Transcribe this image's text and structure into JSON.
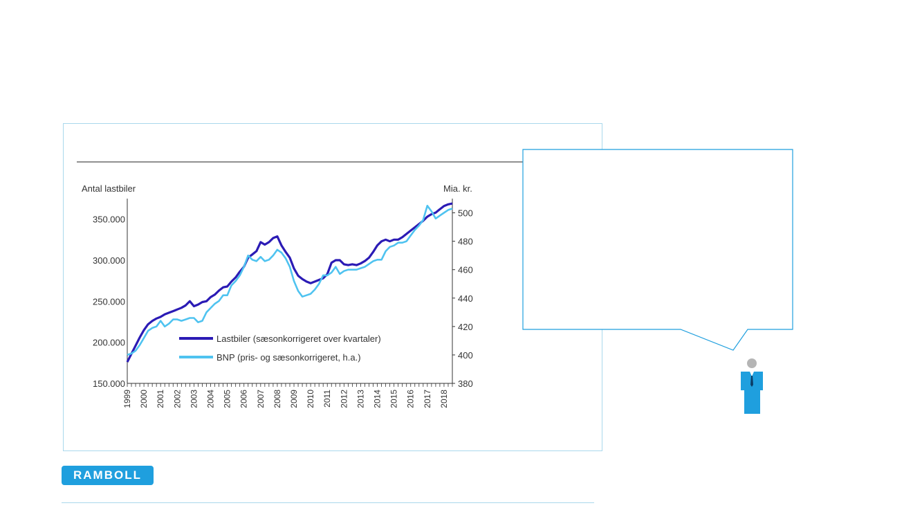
{
  "chart_data": {
    "type": "line",
    "left_axis": {
      "label": "Antal lastbiler",
      "min": 150000,
      "max": 375000,
      "ticks": [
        "150.000",
        "200.000",
        "250.000",
        "300.000",
        "350.000"
      ]
    },
    "right_axis": {
      "label": "Mia. kr.",
      "min": 380,
      "max": 510,
      "ticks": [
        "380",
        "400",
        "420",
        "440",
        "460",
        "480",
        "500"
      ]
    },
    "x_range": [
      1999,
      2018.5
    ],
    "x_ticks": [
      "1999",
      "2000",
      "2001",
      "2002",
      "2003",
      "2004",
      "2005",
      "2006",
      "2007",
      "2008",
      "2009",
      "2010",
      "2011",
      "2012",
      "2013",
      "2014",
      "2015",
      "2016",
      "2017",
      "2018"
    ],
    "grid": false,
    "legend_position": "bottom-center",
    "series": [
      {
        "name": "Lastbiler (sæsonkorrigeret over kvartaler)",
        "axis": "left",
        "color": "#2b1bb5",
        "points": [
          [
            1999.0,
            176000
          ],
          [
            1999.25,
            186000
          ],
          [
            1999.5,
            196000
          ],
          [
            1999.75,
            206000
          ],
          [
            2000.0,
            215000
          ],
          [
            2000.25,
            222000
          ],
          [
            2000.5,
            226000
          ],
          [
            2000.75,
            229000
          ],
          [
            2001.0,
            231000
          ],
          [
            2001.25,
            234000
          ],
          [
            2001.5,
            236000
          ],
          [
            2001.75,
            238000
          ],
          [
            2002.0,
            240000
          ],
          [
            2002.25,
            242000
          ],
          [
            2002.5,
            245000
          ],
          [
            2002.75,
            250000
          ],
          [
            2003.0,
            244000
          ],
          [
            2003.25,
            246000
          ],
          [
            2003.5,
            249000
          ],
          [
            2003.75,
            250000
          ],
          [
            2004.0,
            255000
          ],
          [
            2004.25,
            258000
          ],
          [
            2004.5,
            263000
          ],
          [
            2004.75,
            267000
          ],
          [
            2005.0,
            268000
          ],
          [
            2005.25,
            274000
          ],
          [
            2005.5,
            279000
          ],
          [
            2005.75,
            286000
          ],
          [
            2006.0,
            292000
          ],
          [
            2006.25,
            303000
          ],
          [
            2006.5,
            307000
          ],
          [
            2006.75,
            311000
          ],
          [
            2007.0,
            322000
          ],
          [
            2007.25,
            319000
          ],
          [
            2007.5,
            322000
          ],
          [
            2007.75,
            327000
          ],
          [
            2008.0,
            329000
          ],
          [
            2008.25,
            318000
          ],
          [
            2008.5,
            310000
          ],
          [
            2008.75,
            303000
          ],
          [
            2009.0,
            290000
          ],
          [
            2009.25,
            281000
          ],
          [
            2009.5,
            277000
          ],
          [
            2009.75,
            274000
          ],
          [
            2010.0,
            272000
          ],
          [
            2010.25,
            274000
          ],
          [
            2010.5,
            276000
          ],
          [
            2010.75,
            278000
          ],
          [
            2011.0,
            283000
          ],
          [
            2011.25,
            297000
          ],
          [
            2011.5,
            300000
          ],
          [
            2011.75,
            300000
          ],
          [
            2012.0,
            295000
          ],
          [
            2012.25,
            294000
          ],
          [
            2012.5,
            295000
          ],
          [
            2012.75,
            294000
          ],
          [
            2013.0,
            296000
          ],
          [
            2013.25,
            299000
          ],
          [
            2013.5,
            303000
          ],
          [
            2013.75,
            310000
          ],
          [
            2014.0,
            318000
          ],
          [
            2014.25,
            323000
          ],
          [
            2014.5,
            325000
          ],
          [
            2014.75,
            323000
          ],
          [
            2015.0,
            325000
          ],
          [
            2015.25,
            325000
          ],
          [
            2015.5,
            328000
          ],
          [
            2015.75,
            332000
          ],
          [
            2016.0,
            336000
          ],
          [
            2016.25,
            340000
          ],
          [
            2016.5,
            344000
          ],
          [
            2016.75,
            348000
          ],
          [
            2017.0,
            353000
          ],
          [
            2017.25,
            356000
          ],
          [
            2017.5,
            358000
          ],
          [
            2017.75,
            362000
          ],
          [
            2018.0,
            366000
          ],
          [
            2018.25,
            368000
          ],
          [
            2018.5,
            369000
          ]
        ]
      },
      {
        "name": "BNP (pris- og sæsonkorrigeret, h.a.)",
        "axis": "right",
        "color": "#4fc3f0",
        "points": [
          [
            1999.0,
            400
          ],
          [
            1999.25,
            401
          ],
          [
            1999.5,
            403
          ],
          [
            1999.75,
            407
          ],
          [
            2000.0,
            412
          ],
          [
            2000.25,
            417
          ],
          [
            2000.5,
            419
          ],
          [
            2000.75,
            420
          ],
          [
            2001.0,
            424
          ],
          [
            2001.25,
            420
          ],
          [
            2001.5,
            422
          ],
          [
            2001.75,
            425
          ],
          [
            2002.0,
            425
          ],
          [
            2002.25,
            424
          ],
          [
            2002.5,
            425
          ],
          [
            2002.75,
            426
          ],
          [
            2003.0,
            426
          ],
          [
            2003.25,
            423
          ],
          [
            2003.5,
            424
          ],
          [
            2003.75,
            430
          ],
          [
            2004.0,
            433
          ],
          [
            2004.25,
            436
          ],
          [
            2004.5,
            438
          ],
          [
            2004.75,
            442
          ],
          [
            2005.0,
            442
          ],
          [
            2005.25,
            449
          ],
          [
            2005.5,
            452
          ],
          [
            2005.75,
            456
          ],
          [
            2006.0,
            462
          ],
          [
            2006.25,
            470
          ],
          [
            2006.5,
            467
          ],
          [
            2006.75,
            466
          ],
          [
            2007.0,
            469
          ],
          [
            2007.25,
            466
          ],
          [
            2007.5,
            467
          ],
          [
            2007.75,
            470
          ],
          [
            2008.0,
            474
          ],
          [
            2008.25,
            472
          ],
          [
            2008.5,
            468
          ],
          [
            2008.75,
            462
          ],
          [
            2009.0,
            452
          ],
          [
            2009.25,
            445
          ],
          [
            2009.5,
            441
          ],
          [
            2009.75,
            442
          ],
          [
            2010.0,
            443
          ],
          [
            2010.25,
            446
          ],
          [
            2010.5,
            450
          ],
          [
            2010.75,
            456
          ],
          [
            2011.0,
            456
          ],
          [
            2011.25,
            458
          ],
          [
            2011.5,
            462
          ],
          [
            2011.75,
            457
          ],
          [
            2012.0,
            459
          ],
          [
            2012.25,
            460
          ],
          [
            2012.5,
            460
          ],
          [
            2012.75,
            460
          ],
          [
            2013.0,
            461
          ],
          [
            2013.25,
            462
          ],
          [
            2013.5,
            464
          ],
          [
            2013.75,
            466
          ],
          [
            2014.0,
            467
          ],
          [
            2014.25,
            467
          ],
          [
            2014.5,
            473
          ],
          [
            2014.75,
            476
          ],
          [
            2015.0,
            477
          ],
          [
            2015.25,
            479
          ],
          [
            2015.5,
            479
          ],
          [
            2015.75,
            480
          ],
          [
            2016.0,
            484
          ],
          [
            2016.25,
            488
          ],
          [
            2016.5,
            491
          ],
          [
            2016.75,
            495
          ],
          [
            2017.0,
            505
          ],
          [
            2017.25,
            501
          ],
          [
            2017.5,
            496
          ],
          [
            2017.75,
            498
          ],
          [
            2018.0,
            500
          ],
          [
            2018.25,
            502
          ],
          [
            2018.5,
            503
          ]
        ]
      }
    ]
  },
  "logo": {
    "text": "RAMBOLL"
  }
}
